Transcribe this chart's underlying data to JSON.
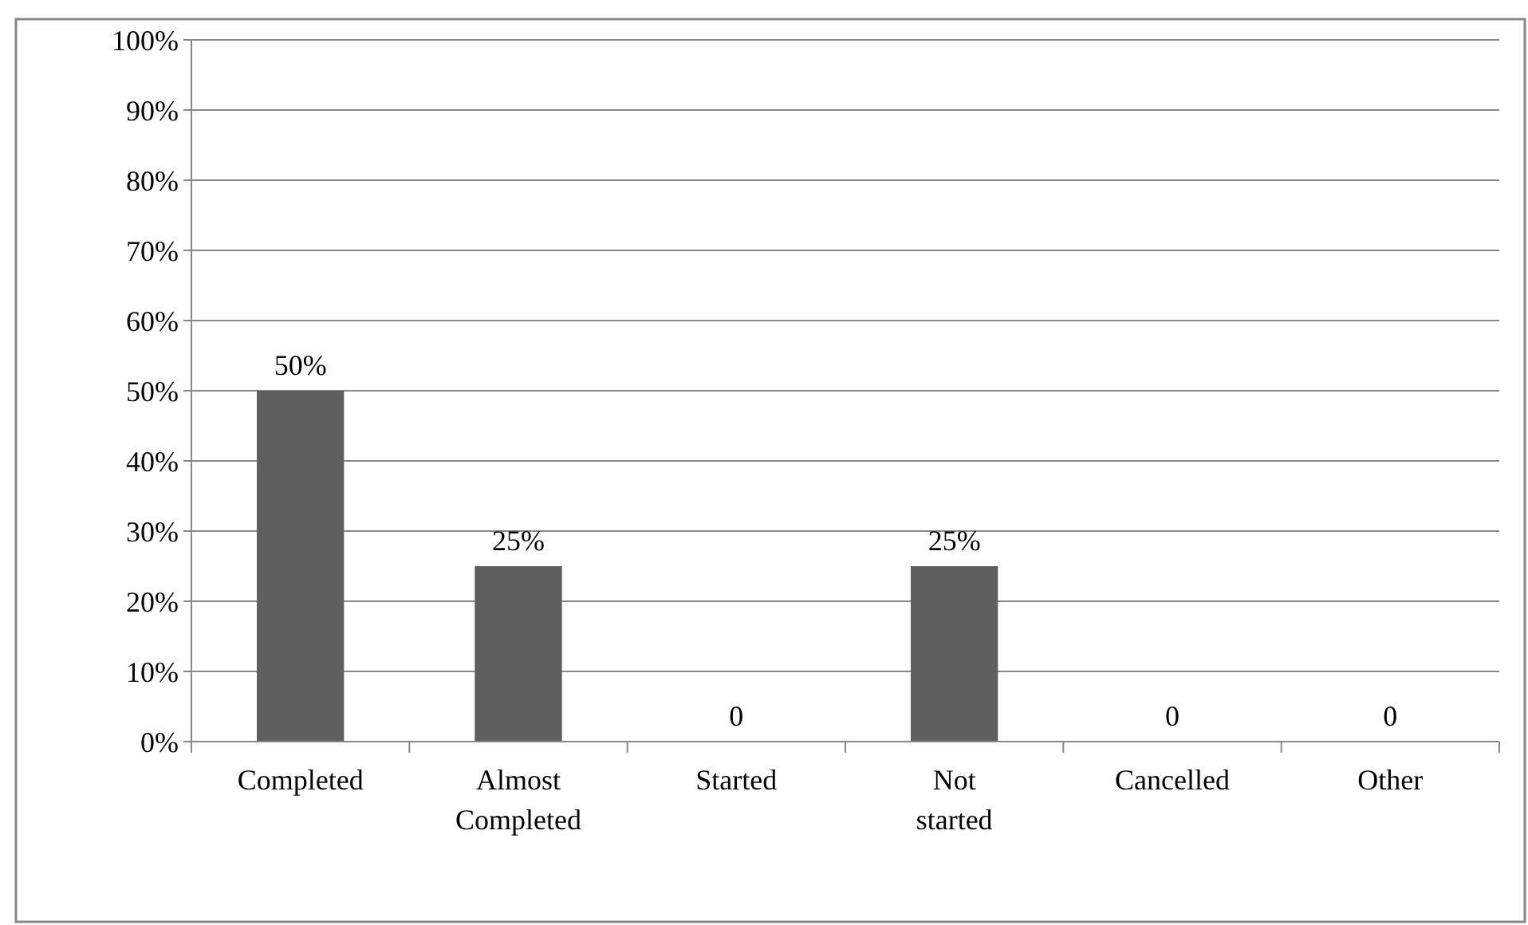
{
  "chart_data": {
    "type": "bar",
    "categories": [
      "Completed",
      "Almost Completed",
      "Started",
      "Not started",
      "Cancelled",
      "Other"
    ],
    "values": [
      50,
      25,
      0,
      25,
      0,
      0
    ],
    "value_labels": [
      "50%",
      "25%",
      "0",
      "25%",
      "0",
      "0"
    ],
    "color": "#5f5f5f",
    "ylim": [
      0,
      100
    ],
    "yticks": [
      {
        "value": 0,
        "label": "0%"
      },
      {
        "value": 10,
        "label": "10%"
      },
      {
        "value": 20,
        "label": "20%"
      },
      {
        "value": 30,
        "label": "30%"
      },
      {
        "value": 40,
        "label": "40%"
      },
      {
        "value": 50,
        "label": "50%"
      },
      {
        "value": 60,
        "label": "60%"
      },
      {
        "value": 70,
        "label": "70%"
      },
      {
        "value": 80,
        "label": "80%"
      },
      {
        "value": 90,
        "label": "90%"
      },
      {
        "value": 100,
        "label": "100%"
      }
    ],
    "grid": "y"
  }
}
